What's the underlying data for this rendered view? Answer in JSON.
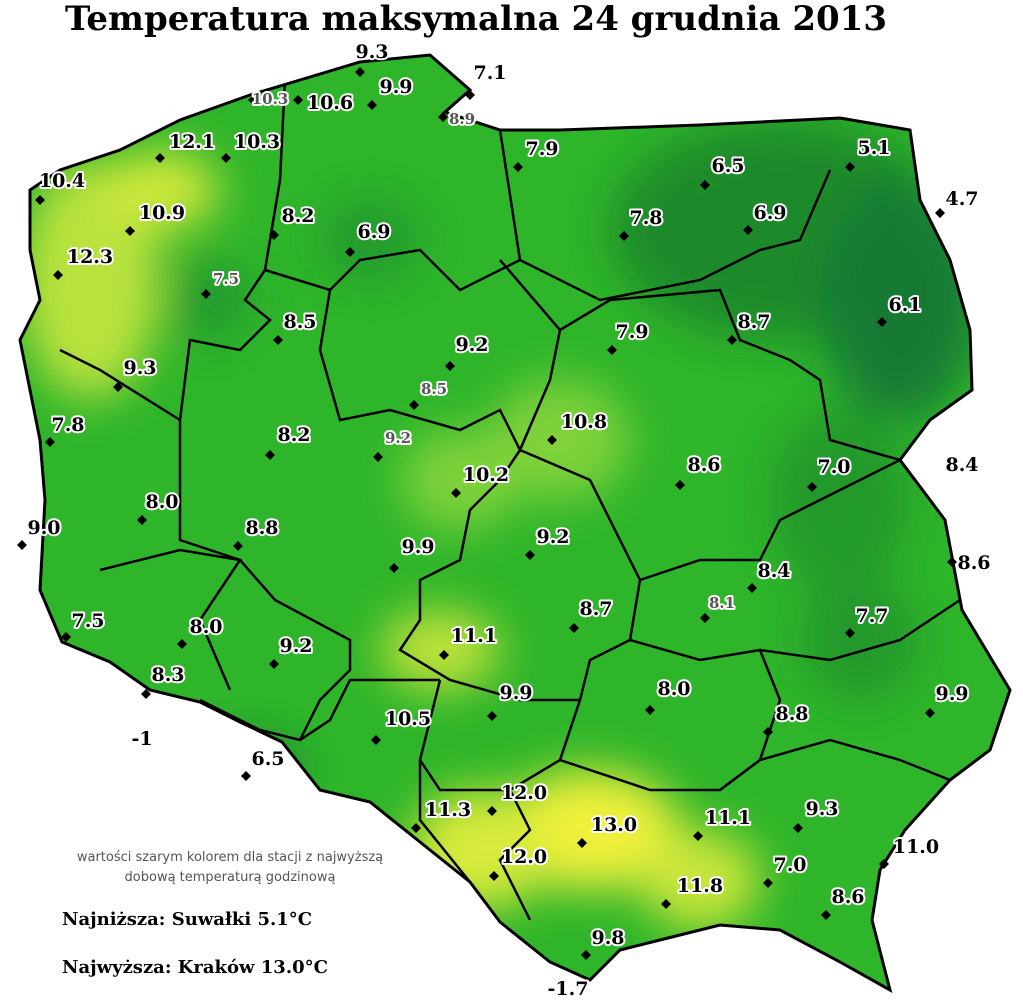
{
  "title": "Temperatura maksymalna 24 grudnia 2013",
  "stations": [
    "9.3",
    "9.9",
    "7.1",
    "10.3",
    "10.6",
    "8.9",
    "12.1",
    "10.3",
    "7.9",
    "6.5",
    "5.1",
    "10.4",
    "4.7",
    "10.9",
    "8.2",
    "6.9",
    "7.8",
    "6.9",
    "12.3",
    "7.5",
    "6.1",
    "8.5",
    "7.9",
    "8.7",
    "9.2",
    "9.3",
    "8.5",
    "7.8",
    "10.8",
    "8.2",
    "9.2",
    "8.6",
    "7.0",
    "8.4",
    "10.2",
    "8.0",
    "9.0",
    "8.8",
    "9.2",
    "9.9",
    "8.6",
    "8.4",
    "8.1",
    "7.5",
    "8.7",
    "8.0",
    "7.7",
    "11.1",
    "9.2",
    "8.3",
    "8.0",
    "9.9",
    "9.9",
    "8.8",
    "10.5",
    "-1",
    "6.5",
    "12.0",
    "11.3",
    "11.1",
    "9.3",
    "13.0",
    "11.0",
    "12.0",
    "7.0",
    "11.8",
    "8.6",
    "9.8",
    "-1.7"
  ],
  "note": [
    "wartości szarym kolorem dla stacji z najwyższą",
    "dobową temperaturą godzinową"
  ],
  "lowest": "Najniższa: Suwałki 5.1°C",
  "highest": "Najwyższa: Kraków 13.0°C"
}
